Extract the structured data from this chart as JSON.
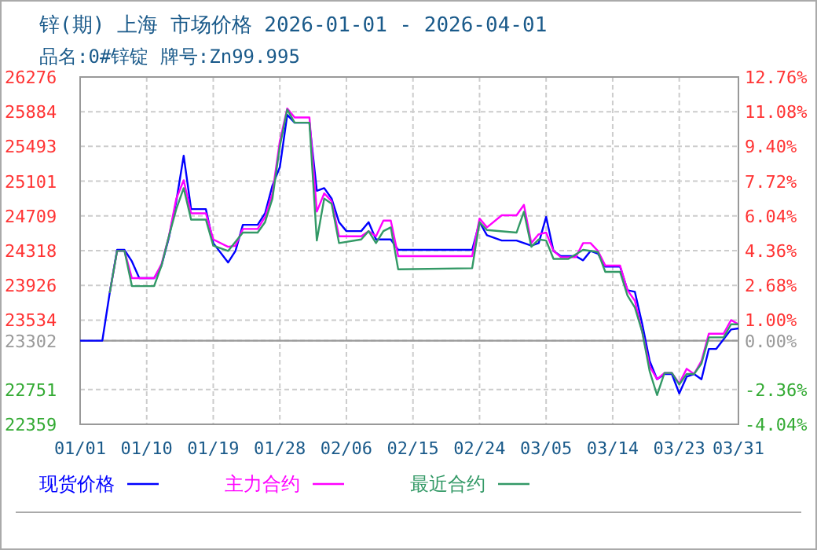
{
  "chart_data": {
    "type": "line",
    "title": "锌(期) 上海 市场价格 2026-01-01 - 2026-04-01",
    "subtitle": "品名:0#锌锭 牌号:Zn99.995",
    "xlim": [
      "2026-01-01",
      "2026-03-31"
    ],
    "xticks": [
      {
        "value": "2026-01-01",
        "label": "01/01"
      },
      {
        "value": "2026-01-10",
        "label": "01/10"
      },
      {
        "value": "2026-01-19",
        "label": "01/19"
      },
      {
        "value": "2026-01-28",
        "label": "01/28"
      },
      {
        "value": "2026-02-06",
        "label": "02/06"
      },
      {
        "value": "2026-02-15",
        "label": "02/15"
      },
      {
        "value": "2026-02-24",
        "label": "02/24"
      },
      {
        "value": "2026-03-05",
        "label": "03/05"
      },
      {
        "value": "2026-03-14",
        "label": "03/14"
      },
      {
        "value": "2026-03-23",
        "label": "03/23"
      },
      {
        "value": "2026-03-31",
        "label": "03/31"
      }
    ],
    "ylim": [
      22359,
      26276
    ],
    "yticks": [
      22359,
      22751,
      23302,
      23534,
      23926,
      24318,
      24709,
      25101,
      25493,
      25884,
      26276
    ],
    "y2lim": [
      -4.04,
      12.76
    ],
    "y2ticks": [
      {
        "value": -4.04,
        "label": "-4.04%"
      },
      {
        "value": -2.36,
        "label": "-2.36%"
      },
      {
        "value": 0,
        "label": "0.00%"
      },
      {
        "value": 1,
        "label": "1.00%"
      },
      {
        "value": 2.68,
        "label": "2.68%"
      },
      {
        "value": 4.36,
        "label": "4.36%"
      },
      {
        "value": 6.04,
        "label": "6.04%"
      },
      {
        "value": 7.72,
        "label": "7.72%"
      },
      {
        "value": 9.4,
        "label": "9.40%"
      },
      {
        "value": 11.08,
        "label": "11.08%"
      },
      {
        "value": 12.76,
        "label": "12.76%"
      }
    ],
    "ref_lines": [
      {
        "axis": "y",
        "value": 23302,
        "color": "#999999"
      }
    ],
    "grid": true,
    "legend": "bottom",
    "line_style": "solid",
    "series": [
      {
        "name": "现货价格",
        "color": "#0000ff",
        "x": [
          "2026-01-01",
          "2026-01-04",
          "2026-01-05",
          "2026-01-06",
          "2026-01-07",
          "2026-01-08",
          "2026-01-09",
          "2026-01-11",
          "2026-01-12",
          "2026-01-13",
          "2026-01-14",
          "2026-01-15",
          "2026-01-16",
          "2026-01-18",
          "2026-01-19",
          "2026-01-21",
          "2026-01-22",
          "2026-01-23",
          "2026-01-25",
          "2026-01-26",
          "2026-01-27",
          "2026-01-28",
          "2026-01-29",
          "2026-01-30",
          "2026-02-01",
          "2026-02-02",
          "2026-02-03",
          "2026-02-04",
          "2026-02-05",
          "2026-02-06",
          "2026-02-08",
          "2026-02-09",
          "2026-02-10",
          "2026-02-12",
          "2026-02-13",
          "2026-02-23",
          "2026-02-24",
          "2026-02-25",
          "2026-02-27",
          "2026-03-01",
          "2026-03-03",
          "2026-03-04",
          "2026-03-05",
          "2026-03-06",
          "2026-03-07",
          "2026-03-09",
          "2026-03-10",
          "2026-03-11",
          "2026-03-12",
          "2026-03-13",
          "2026-03-15",
          "2026-03-16",
          "2026-03-17",
          "2026-03-18",
          "2026-03-19",
          "2026-03-20",
          "2026-03-21",
          "2026-03-22",
          "2026-03-23",
          "2026-03-24",
          "2026-03-25",
          "2026-03-26",
          "2026-03-27",
          "2026-03-28",
          "2026-03-30",
          "2026-03-31"
        ],
        "values": [
          23302,
          23302,
          23841,
          24326,
          24326,
          24196,
          24007,
          24007,
          24149,
          24462,
          24875,
          25389,
          24786,
          24786,
          24403,
          24184,
          24314,
          24609,
          24609,
          24739,
          25052,
          25259,
          25850,
          25761,
          25761,
          24993,
          25023,
          24905,
          24639,
          24538,
          24538,
          24639,
          24444,
          24444,
          24326,
          24326,
          24639,
          24491,
          24432,
          24432,
          24373,
          24403,
          24698,
          24314,
          24255,
          24255,
          24208,
          24314,
          24284,
          24137,
          24137,
          23871,
          23853,
          23487,
          23073,
          22867,
          22926,
          22926,
          22707,
          22896,
          22926,
          22867,
          23209,
          23209,
          23428,
          23440
        ]
      },
      {
        "name": "主力合约",
        "color": "#ff00ff",
        "x": [
          "2026-01-05",
          "2026-01-06",
          "2026-01-07",
          "2026-01-08",
          "2026-01-11",
          "2026-01-12",
          "2026-01-13",
          "2026-01-14",
          "2026-01-15",
          "2026-01-16",
          "2026-01-18",
          "2026-01-19",
          "2026-01-21",
          "2026-01-22",
          "2026-01-23",
          "2026-01-25",
          "2026-01-26",
          "2026-01-27",
          "2026-01-28",
          "2026-01-29",
          "2026-01-30",
          "2026-02-01",
          "2026-02-02",
          "2026-02-03",
          "2026-02-04",
          "2026-02-05",
          "2026-02-08",
          "2026-02-09",
          "2026-02-10",
          "2026-02-11",
          "2026-02-12",
          "2026-02-13",
          "2026-02-23",
          "2026-02-24",
          "2026-02-25",
          "2026-02-27",
          "2026-03-01",
          "2026-03-02",
          "2026-03-03",
          "2026-03-04",
          "2026-03-05",
          "2026-03-06",
          "2026-03-07",
          "2026-03-09",
          "2026-03-10",
          "2026-03-11",
          "2026-03-12",
          "2026-03-13",
          "2026-03-15",
          "2026-03-16",
          "2026-03-17",
          "2026-03-18",
          "2026-03-19",
          "2026-03-20",
          "2026-03-21",
          "2026-03-22",
          "2026-03-23",
          "2026-03-24",
          "2026-03-25",
          "2026-03-26",
          "2026-03-27",
          "2026-03-29",
          "2026-03-30",
          "2026-03-31"
        ],
        "values": [
          23841,
          24314,
          24314,
          24007,
          24007,
          24166,
          24479,
          24905,
          25111,
          24739,
          24739,
          24444,
          24361,
          24373,
          24562,
          24562,
          24698,
          24964,
          25554,
          25921,
          25820,
          25820,
          24757,
          24964,
          24875,
          24479,
          24479,
          24538,
          24479,
          24657,
          24657,
          24255,
          24255,
          24680,
          24580,
          24716,
          24716,
          24834,
          24403,
          24503,
          24521,
          24314,
          24243,
          24243,
          24403,
          24403,
          24314,
          24149,
          24149,
          23871,
          23753,
          23398,
          23014,
          22867,
          22938,
          22938,
          22819,
          22985,
          22926,
          23073,
          23381,
          23381,
          23534,
          23487
        ]
      },
      {
        "name": "最近合约",
        "color": "#339966",
        "x": [
          "2026-01-05",
          "2026-01-06",
          "2026-01-07",
          "2026-01-08",
          "2026-01-11",
          "2026-01-12",
          "2026-01-13",
          "2026-01-14",
          "2026-01-15",
          "2026-01-16",
          "2026-01-18",
          "2026-01-19",
          "2026-01-21",
          "2026-01-23",
          "2026-01-25",
          "2026-01-26",
          "2026-01-27",
          "2026-01-28",
          "2026-01-29",
          "2026-01-30",
          "2026-02-01",
          "2026-02-02",
          "2026-02-03",
          "2026-02-04",
          "2026-02-05",
          "2026-02-08",
          "2026-02-09",
          "2026-02-10",
          "2026-02-11",
          "2026-02-12",
          "2026-02-13",
          "2026-02-23",
          "2026-02-24",
          "2026-02-25",
          "2026-03-01",
          "2026-03-02",
          "2026-03-03",
          "2026-03-04",
          "2026-03-05",
          "2026-03-06",
          "2026-03-08",
          "2026-03-10",
          "2026-03-12",
          "2026-03-13",
          "2026-03-15",
          "2026-03-16",
          "2026-03-17",
          "2026-03-18",
          "2026-03-19",
          "2026-03-20",
          "2026-03-21",
          "2026-03-22",
          "2026-03-23",
          "2026-03-24",
          "2026-03-25",
          "2026-03-26",
          "2026-03-27",
          "2026-03-29",
          "2026-03-30",
          "2026-03-31"
        ],
        "values": [
          23841,
          24314,
          24314,
          23918,
          23918,
          24149,
          24479,
          24786,
          25023,
          24668,
          24668,
          24373,
          24314,
          24521,
          24521,
          24639,
          24905,
          25495,
          25909,
          25761,
          25761,
          24432,
          24905,
          24846,
          24403,
          24444,
          24538,
          24403,
          24538,
          24580,
          24107,
          24119,
          24639,
          24550,
          24521,
          24757,
          24361,
          24444,
          24432,
          24225,
          24225,
          24326,
          24302,
          24078,
          24078,
          23812,
          23676,
          23398,
          22955,
          22689,
          22938,
          22938,
          22808,
          22926,
          22926,
          23044,
          23339,
          23339,
          23487,
          23487
        ]
      }
    ]
  }
}
